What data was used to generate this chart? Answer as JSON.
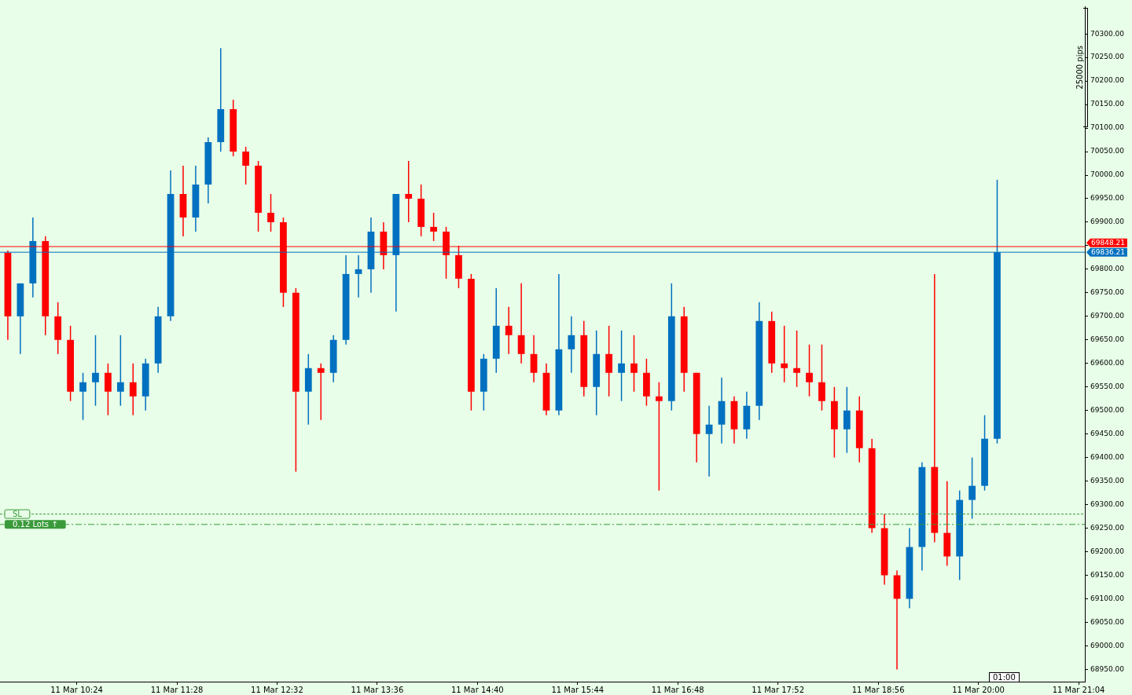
{
  "chart_data": {
    "type": "candlestick",
    "x": [
      "--03-11T09:40",
      "--03-11T09:48",
      "--03-11T09:56",
      "--03-11T10:04",
      "--03-11T10:12",
      "--03-11T10:20",
      "--03-11T10:28",
      "--03-11T10:36",
      "--03-11T10:44",
      "--03-11T10:52",
      "--03-11T11:00",
      "--03-11T11:08",
      "--03-11T11:16",
      "--03-11T11:24",
      "--03-11T11:32",
      "--03-11T11:40",
      "--03-11T11:48",
      "--03-11T11:56",
      "--03-11T12:04",
      "--03-11T12:12",
      "--03-11T12:20",
      "--03-11T12:28",
      "--03-11T12:36",
      "--03-11T12:44",
      "--03-11T12:52",
      "--03-11T13:00",
      "--03-11T13:08",
      "--03-11T13:16",
      "--03-11T13:24",
      "--03-11T13:32",
      "--03-11T13:40",
      "--03-11T13:48",
      "--03-11T13:56",
      "--03-11T14:04",
      "--03-11T14:12",
      "--03-11T14:20",
      "--03-11T14:28",
      "--03-11T14:36",
      "--03-11T14:44",
      "--03-11T14:52",
      "--03-11T15:00",
      "--03-11T15:08",
      "--03-11T15:16",
      "--03-11T15:24",
      "--03-11T15:32",
      "--03-11T15:40",
      "--03-11T15:48",
      "--03-11T15:56",
      "--03-11T16:04",
      "--03-11T16:12",
      "--03-11T16:20",
      "--03-11T16:28",
      "--03-11T16:36",
      "--03-11T16:44",
      "--03-11T16:52",
      "--03-11T17:00",
      "--03-11T17:08",
      "--03-11T17:16",
      "--03-11T17:24",
      "--03-11T17:32",
      "--03-11T17:40",
      "--03-11T17:48",
      "--03-11T17:56",
      "--03-11T18:04",
      "--03-11T18:12",
      "--03-11T18:20",
      "--03-11T18:28",
      "--03-11T18:36",
      "--03-11T18:44",
      "--03-11T18:52",
      "--03-11T19:00",
      "--03-11T19:08",
      "--03-11T19:16",
      "--03-11T19:24",
      "--03-11T19:32",
      "--03-11T19:40",
      "--03-11T19:48",
      "--03-11T19:56",
      "--03-11T20:04",
      "--03-11T20:12"
    ],
    "ohlc": [
      [
        69835,
        69840,
        69650,
        69700
      ],
      [
        69700,
        69770,
        69620,
        69770
      ],
      [
        69770,
        69910,
        69740,
        69860
      ],
      [
        69860,
        69870,
        69660,
        69700
      ],
      [
        69700,
        69730,
        69620,
        69650
      ],
      [
        69650,
        69680,
        69520,
        69540
      ],
      [
        69540,
        69580,
        69480,
        69560
      ],
      [
        69560,
        69660,
        69510,
        69580
      ],
      [
        69580,
        69600,
        69490,
        69540
      ],
      [
        69540,
        69660,
        69510,
        69560
      ],
      [
        69560,
        69600,
        69490,
        69530
      ],
      [
        69530,
        69610,
        69500,
        69600
      ],
      [
        69600,
        69720,
        69580,
        69700
      ],
      [
        69700,
        70010,
        69690,
        69960
      ],
      [
        69960,
        70020,
        69870,
        69910
      ],
      [
        69910,
        70020,
        69880,
        69980
      ],
      [
        69980,
        70080,
        69940,
        70070
      ],
      [
        70070,
        70270,
        70050,
        70140
      ],
      [
        70140,
        70160,
        70040,
        70050
      ],
      [
        70050,
        70060,
        69980,
        70020
      ],
      [
        70020,
        70030,
        69880,
        69920
      ],
      [
        69920,
        69960,
        69880,
        69900
      ],
      [
        69900,
        69910,
        69720,
        69750
      ],
      [
        69750,
        69760,
        69370,
        69540
      ],
      [
        69540,
        69620,
        69470,
        69590
      ],
      [
        69590,
        69600,
        69480,
        69580
      ],
      [
        69580,
        69660,
        69560,
        69650
      ],
      [
        69650,
        69830,
        69640,
        69790
      ],
      [
        69790,
        69830,
        69740,
        69800
      ],
      [
        69800,
        69910,
        69750,
        69880
      ],
      [
        69880,
        69900,
        69800,
        69830
      ],
      [
        69830,
        69960,
        69710,
        69960
      ],
      [
        69960,
        70030,
        69900,
        69950
      ],
      [
        69950,
        69980,
        69870,
        69890
      ],
      [
        69890,
        69920,
        69860,
        69880
      ],
      [
        69880,
        69890,
        69780,
        69830
      ],
      [
        69830,
        69850,
        69760,
        69780
      ],
      [
        69780,
        69790,
        69500,
        69540
      ],
      [
        69540,
        69620,
        69500,
        69610
      ],
      [
        69610,
        69760,
        69580,
        69680
      ],
      [
        69680,
        69720,
        69620,
        69660
      ],
      [
        69660,
        69770,
        69600,
        69620
      ],
      [
        69620,
        69660,
        69560,
        69580
      ],
      [
        69580,
        69600,
        69490,
        69500
      ],
      [
        69500,
        69790,
        69490,
        69630
      ],
      [
        69630,
        69700,
        69580,
        69660
      ],
      [
        69660,
        69690,
        69530,
        69550
      ],
      [
        69550,
        69670,
        69490,
        69620
      ],
      [
        69620,
        69680,
        69530,
        69580
      ],
      [
        69580,
        69670,
        69520,
        69600
      ],
      [
        69600,
        69660,
        69540,
        69580
      ],
      [
        69580,
        69610,
        69510,
        69530
      ],
      [
        69530,
        69560,
        69330,
        69520
      ],
      [
        69520,
        69770,
        69500,
        69700
      ],
      [
        69700,
        69720,
        69540,
        69580
      ],
      [
        69580,
        69580,
        69390,
        69450
      ],
      [
        69450,
        69510,
        69360,
        69470
      ],
      [
        69470,
        69570,
        69430,
        69520
      ],
      [
        69520,
        69530,
        69430,
        69460
      ],
      [
        69460,
        69540,
        69440,
        69510
      ],
      [
        69510,
        69730,
        69480,
        69690
      ],
      [
        69690,
        69710,
        69580,
        69600
      ],
      [
        69600,
        69680,
        69560,
        69590
      ],
      [
        69590,
        69670,
        69550,
        69580
      ],
      [
        69580,
        69640,
        69530,
        69560
      ],
      [
        69560,
        69640,
        69500,
        69520
      ],
      [
        69520,
        69550,
        69400,
        69460
      ],
      [
        69460,
        69550,
        69410,
        69500
      ],
      [
        69500,
        69530,
        69390,
        69420
      ],
      [
        69420,
        69440,
        69240,
        69250
      ],
      [
        69250,
        69280,
        69130,
        69150
      ],
      [
        69150,
        69160,
        68950,
        69100
      ],
      [
        69100,
        69250,
        69080,
        69210
      ],
      [
        69210,
        69390,
        69160,
        69380
      ],
      [
        69380,
        69790,
        69220,
        69240
      ],
      [
        69240,
        69350,
        69170,
        69190
      ],
      [
        69190,
        69330,
        69140,
        69310
      ],
      [
        69310,
        69400,
        69270,
        69340
      ],
      [
        69340,
        69490,
        69330,
        69440
      ],
      [
        69440,
        69990,
        69430,
        69836
      ]
    ],
    "colors": [
      "#ff0000",
      "#0070c0",
      "#0070c0",
      "#ff0000",
      "#ff0000",
      "#ff0000",
      "#0070c0",
      "#0070c0",
      "#ff0000",
      "#0070c0",
      "#ff0000",
      "#0070c0",
      "#0070c0",
      "#0070c0",
      "#ff0000",
      "#0070c0",
      "#0070c0",
      "#0070c0",
      "#ff0000",
      "#ff0000",
      "#ff0000",
      "#ff0000",
      "#ff0000",
      "#ff0000",
      "#0070c0",
      "#ff0000",
      "#0070c0",
      "#0070c0",
      "#0070c0",
      "#0070c0",
      "#ff0000",
      "#0070c0",
      "#ff0000",
      "#ff0000",
      "#ff0000",
      "#ff0000",
      "#ff0000",
      "#ff0000",
      "#0070c0",
      "#0070c0",
      "#ff0000",
      "#ff0000",
      "#ff0000",
      "#ff0000",
      "#0070c0",
      "#0070c0",
      "#ff0000",
      "#0070c0",
      "#ff0000",
      "#0070c0",
      "#ff0000",
      "#ff0000",
      "#ff0000",
      "#0070c0",
      "#ff0000",
      "#ff0000",
      "#0070c0",
      "#0070c0",
      "#ff0000",
      "#0070c0",
      "#0070c0",
      "#ff0000",
      "#ff0000",
      "#ff0000",
      "#ff0000",
      "#ff0000",
      "#ff0000",
      "#0070c0",
      "#ff0000",
      "#ff0000",
      "#ff0000",
      "#ff0000",
      "#0070c0",
      "#0070c0",
      "#ff0000",
      "#ff0000",
      "#0070c0",
      "#0070c0",
      "#0070c0",
      "#0070c0"
    ],
    "xlim": [
      "--03-11T09:35",
      "--03-11T21:08"
    ],
    "xticks": [
      {
        "value": "--03-11T10:24",
        "label": "11 Mar 10:24"
      },
      {
        "value": "--03-11T11:28",
        "label": "11 Mar 11:28"
      },
      {
        "value": "--03-11T12:32",
        "label": "11 Mar 12:32"
      },
      {
        "value": "--03-11T13:36",
        "label": "11 Mar 13:36"
      },
      {
        "value": "--03-11T14:40",
        "label": "11 Mar 14:40"
      },
      {
        "value": "--03-11T15:44",
        "label": "11 Mar 15:44"
      },
      {
        "value": "--03-11T16:48",
        "label": "11 Mar 16:48"
      },
      {
        "value": "--03-11T17:52",
        "label": "11 Mar 17:52"
      },
      {
        "value": "--03-11T18:56",
        "label": "11 Mar 18:56"
      },
      {
        "value": "--03-11T20:00",
        "label": "11 Mar 20:00"
      },
      {
        "value": "--03-11T21:04",
        "label": "11 Mar 21:04"
      }
    ],
    "ylim": [
      68924,
      70358
    ],
    "yticks": [
      {
        "value": 68950,
        "label": "68950.00"
      },
      {
        "value": 69000,
        "label": "69000.00"
      },
      {
        "value": 69050,
        "label": "69050.00"
      },
      {
        "value": 69100,
        "label": "69100.00"
      },
      {
        "value": 69150,
        "label": "69150.00"
      },
      {
        "value": 69200,
        "label": "69200.00"
      },
      {
        "value": 69250,
        "label": "69250.00"
      },
      {
        "value": 69300,
        "label": "69300.00"
      },
      {
        "value": 69350,
        "label": "69350.00"
      },
      {
        "value": 69400,
        "label": "69400.00"
      },
      {
        "value": 69450,
        "label": "69450.00"
      },
      {
        "value": 69500,
        "label": "69500.00"
      },
      {
        "value": 69550,
        "label": "69550.00"
      },
      {
        "value": 69600,
        "label": "69600.00"
      },
      {
        "value": 69650,
        "label": "69650.00"
      },
      {
        "value": 69700,
        "label": "69700.00"
      },
      {
        "value": 69750,
        "label": "69750.00"
      },
      {
        "value": 69800,
        "label": "69800.00"
      },
      {
        "value": 69850,
        "label": null
      },
      {
        "value": 69900,
        "label": "69900.00"
      },
      {
        "value": 69950,
        "label": "69950.00"
      },
      {
        "value": 70000,
        "label": "70000.00"
      },
      {
        "value": 70050,
        "label": "70050.00"
      },
      {
        "value": 70100,
        "label": "70100.00"
      },
      {
        "value": 70150,
        "label": "70150.00"
      },
      {
        "value": 70200,
        "label": "70200.00"
      },
      {
        "value": 70250,
        "label": "70250.00"
      },
      {
        "value": 70300,
        "label": "70300.00"
      }
    ],
    "ref_lines": [
      {
        "axis": "y",
        "value": 69848.21,
        "label": "69848.21",
        "color": "#ff0000",
        "line_style": "solid"
      },
      {
        "axis": "y",
        "value": 69836.21,
        "label": "69836.21",
        "color": "#0070c0",
        "line_style": "solid"
      },
      {
        "axis": "y",
        "value": 69280,
        "label": "SL",
        "color": "#3a9a3a",
        "line_style": "dotted"
      },
      {
        "axis": "y",
        "value": 69258,
        "label": "0.12 Lots ↑",
        "color": "#3a9a3a",
        "line_style": "dashed"
      }
    ],
    "annotations": [
      "25000 pips",
      "01:00"
    ]
  }
}
